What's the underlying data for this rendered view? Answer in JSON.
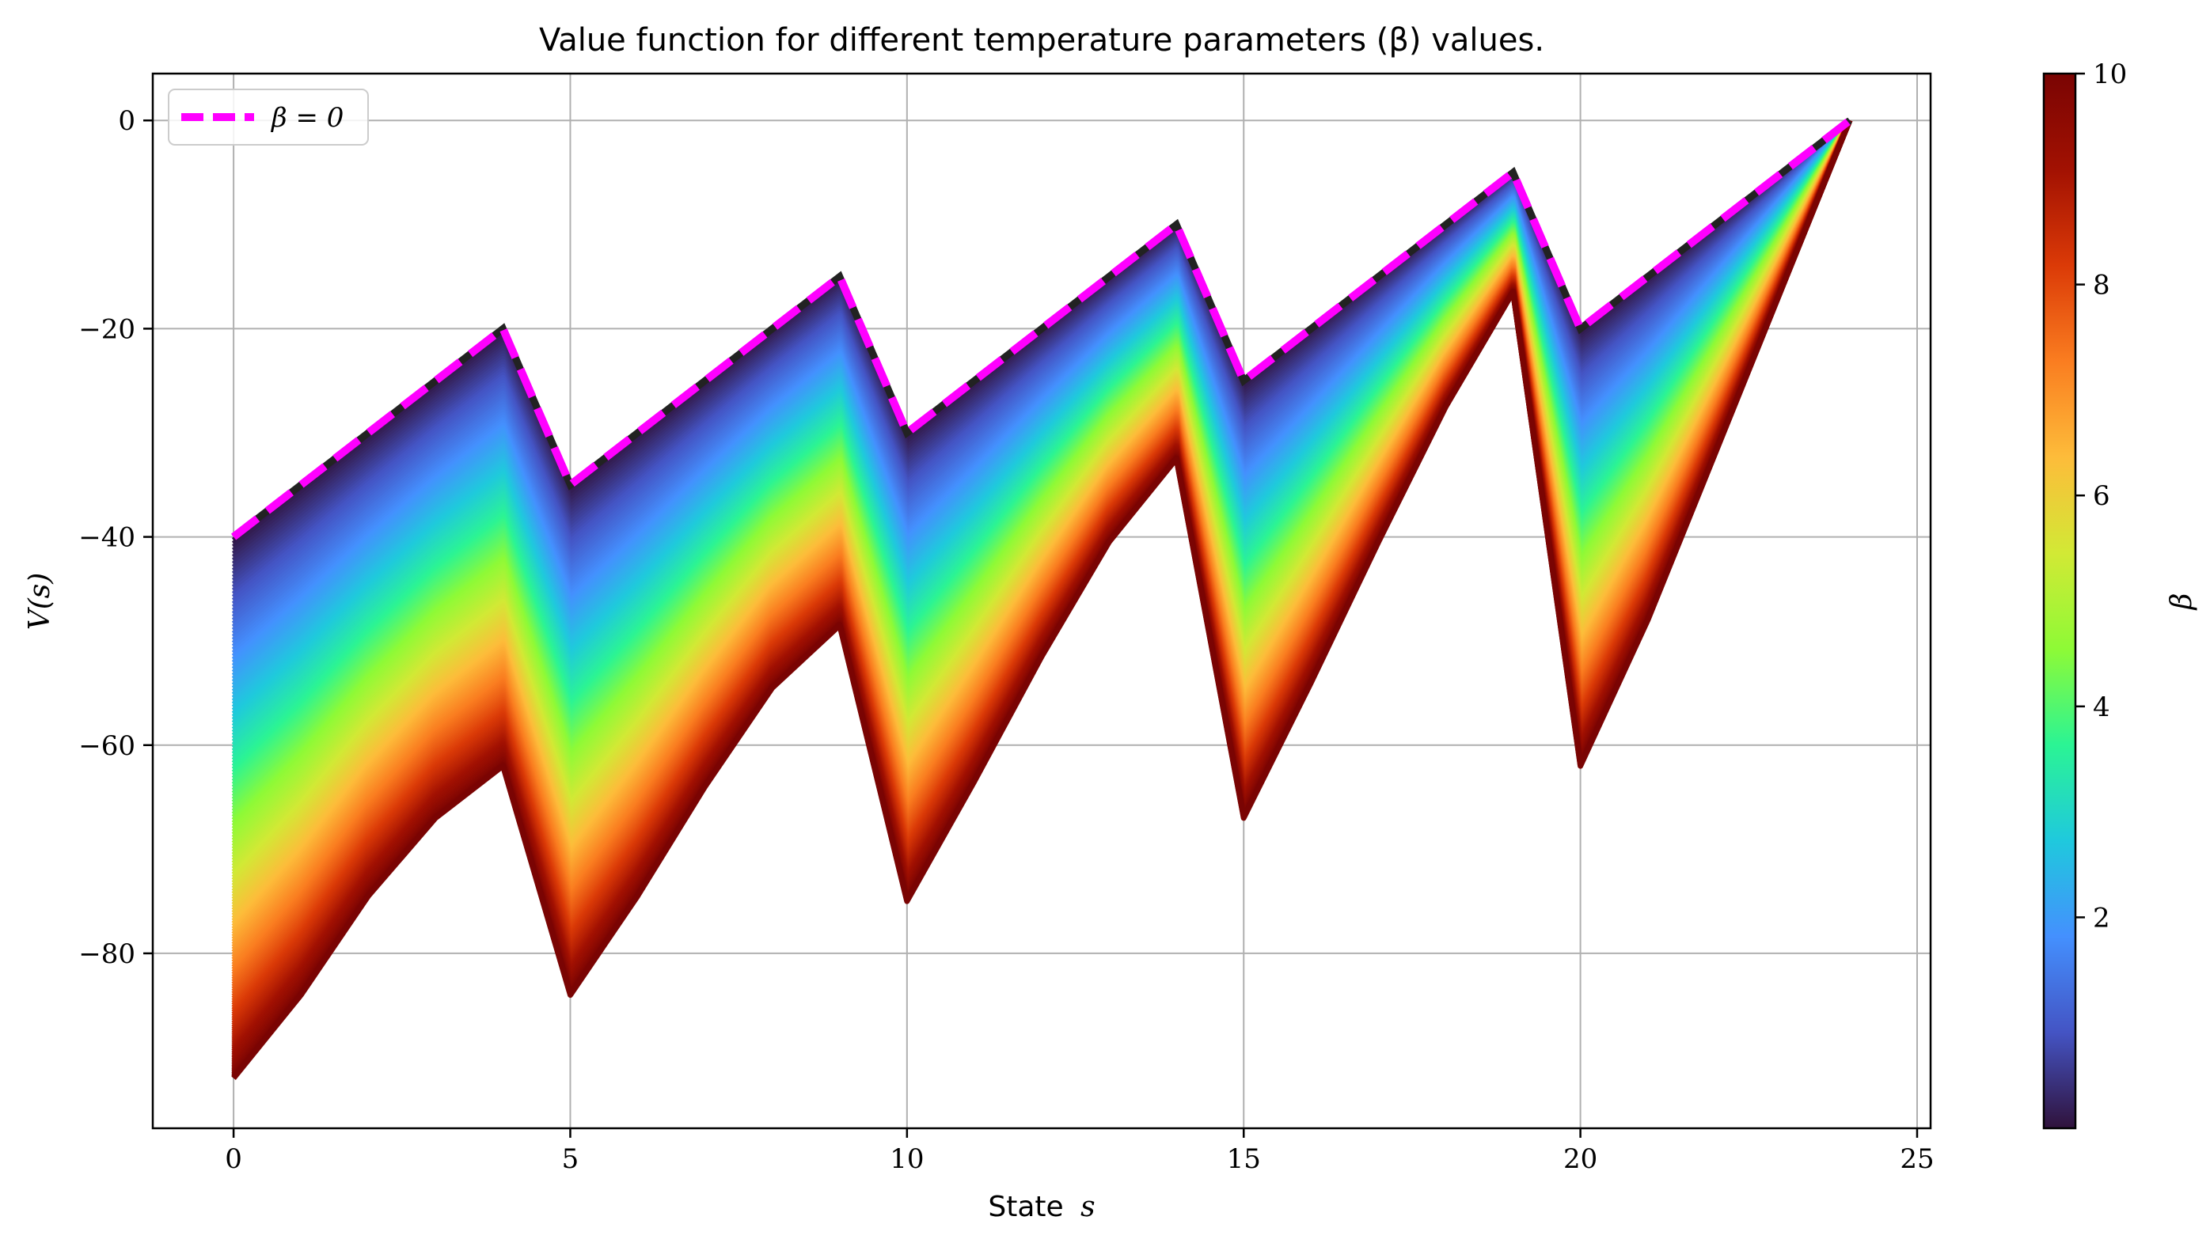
{
  "title": "Value function for different temperature parameters (β) values.",
  "xlabel_text": "State",
  "xlabel_var": "s",
  "ylabel": "V(s)",
  "colorbar_label": "β",
  "legend_label": "β = 0",
  "chart_data": {
    "type": "line",
    "title": "Value function for different temperature parameters (β) values.",
    "xlabel": "State s",
    "ylabel": "V(s)",
    "xlim": [
      -1.2,
      25.2
    ],
    "ylim": [
      -96.8,
      4.5
    ],
    "xticks": [
      0,
      5,
      10,
      15,
      20,
      25
    ],
    "yticks": [
      0,
      -20,
      -40,
      -60,
      -80
    ],
    "grid": true,
    "legend_position": "top-left",
    "x": [
      0,
      1,
      2,
      3,
      4,
      5,
      6,
      7,
      8,
      9,
      10,
      11,
      12,
      13,
      14,
      15,
      16,
      17,
      18,
      19,
      20,
      21,
      22,
      23,
      24
    ],
    "reference_series": {
      "name": "β = 0",
      "color": "#ff00ff",
      "style": "dashed",
      "values": [
        -40,
        -35,
        -30,
        -25,
        -20,
        -35,
        -30,
        -25,
        -20,
        -15,
        -30,
        -25,
        -20,
        -15,
        -10,
        -25,
        -20,
        -15,
        -10,
        -5,
        -20,
        -15,
        -10,
        -5,
        0
      ]
    },
    "beta_range": [
      0,
      10
    ],
    "num_curves": 200,
    "max_beta_series": {
      "beta": 10,
      "values": [
        -92,
        -84,
        -74.5,
        -67,
        -62,
        -84,
        -74.5,
        -64,
        -54.5,
        -48.5,
        -75,
        -63.5,
        -51.5,
        -40.5,
        -32.5,
        -67,
        -54,
        -40.5,
        -27.5,
        -16.5,
        -62,
        -48,
        -32,
        -16,
        0
      ]
    },
    "colorbar": {
      "label": "β",
      "colormap": "turbo",
      "range": [
        0,
        10
      ],
      "ticks": [
        2,
        4,
        6,
        8,
        10
      ]
    },
    "colormap_stops": [
      "#30123b",
      "#4454c4",
      "#4490fe",
      "#1fc9dd",
      "#2bf494",
      "#8efa36",
      "#d2e935",
      "#fdbc3a",
      "#fa7d20",
      "#db3a07",
      "#a21102",
      "#7a0403"
    ]
  }
}
